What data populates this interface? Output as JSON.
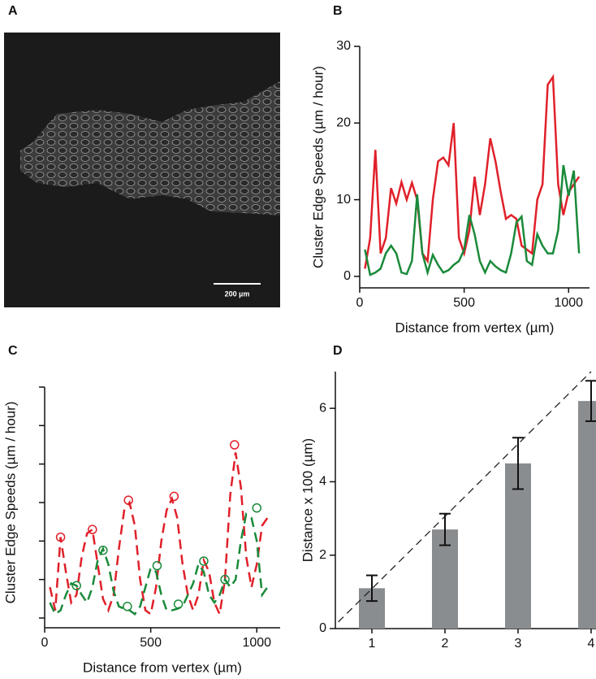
{
  "chart_data": [
    {
      "type": "image",
      "panel": "A",
      "scale_bar_label": "200 µm"
    },
    {
      "type": "line",
      "panel": "B",
      "xlabel": "Distance from vertex (µm)",
      "ylabel": "Cluster Edge Speeds (µm / hour)",
      "x": [
        25,
        50,
        75,
        100,
        125,
        150,
        175,
        200,
        225,
        250,
        275,
        300,
        325,
        350,
        375,
        400,
        425,
        450,
        475,
        500,
        525,
        550,
        575,
        600,
        625,
        650,
        675,
        700,
        725,
        750,
        775,
        800,
        825,
        850,
        875,
        900,
        925,
        950,
        975,
        1000,
        1025,
        1050
      ],
      "series": [
        {
          "name": "red",
          "color": "#e0202a",
          "values": [
            1,
            5,
            16.5,
            3,
            5,
            11.5,
            9.5,
            12.3,
            10,
            12.2,
            10,
            3,
            2,
            10,
            15,
            15.5,
            14.5,
            20,
            5,
            3,
            6,
            13,
            8,
            12,
            18,
            15,
            11,
            7.5,
            8,
            7.5,
            4,
            3.5,
            3,
            10,
            12,
            25,
            26,
            12,
            8,
            11,
            12,
            13
          ]
        },
        {
          "name": "green",
          "color": "#1a8a3a",
          "values": [
            3.5,
            0.2,
            0.5,
            1,
            3,
            4,
            3,
            0.5,
            0.3,
            2,
            10.7,
            3,
            0.5,
            2.8,
            1.5,
            0.5,
            0.8,
            1.5,
            2,
            3.5,
            8,
            5.5,
            2,
            0.5,
            2,
            1.3,
            0.8,
            0.5,
            3,
            7,
            7.8,
            2,
            1.5,
            5.5,
            4,
            3,
            3,
            6,
            14.5,
            10.5,
            13.8,
            3
          ]
        }
      ],
      "xlim": [
        0,
        1100
      ],
      "xticks": [
        0,
        500,
        1000
      ],
      "ylim": [
        -1.5,
        30
      ],
      "yticks": [
        0,
        10,
        20,
        30
      ],
      "line_style": "solid",
      "ytick_labels": true
    },
    {
      "type": "line",
      "panel": "C",
      "xlabel": "Distance from vertex (µm)",
      "ylabel": "Cluster Edge Speeds (µm / hour)",
      "x": [
        25,
        50,
        75,
        100,
        125,
        150,
        175,
        200,
        225,
        250,
        275,
        300,
        325,
        350,
        375,
        400,
        425,
        450,
        475,
        500,
        525,
        550,
        575,
        600,
        625,
        650,
        675,
        700,
        725,
        750,
        775,
        800,
        825,
        850,
        875,
        900,
        925,
        950,
        975,
        1000,
        1025,
        1050
      ],
      "series": [
        {
          "name": "red",
          "color": "#e0202a",
          "values": [
            4,
            1,
            10.5,
            6,
            2,
            3,
            8,
            11,
            11.5,
            7,
            2.5,
            1,
            3,
            9,
            14,
            15,
            12,
            5,
            1,
            0.5,
            4,
            10,
            14,
            15.5,
            13,
            7,
            3,
            1,
            3,
            7.5,
            6,
            2,
            0.5,
            5,
            16,
            21.5,
            17,
            8,
            4,
            7,
            12,
            13
          ],
          "markers": {
            "x": [
              75,
              225,
              395,
              610,
              895
            ],
            "values": [
              10.5,
              11.5,
              15.3,
              15.8,
              22.5
            ]
          }
        },
        {
          "name": "green",
          "color": "#1a8a3a",
          "values": [
            2,
            0.5,
            1,
            3,
            4.5,
            4.2,
            3,
            2,
            4,
            7.5,
            9,
            7,
            3.5,
            1.5,
            1.2,
            1,
            0.5,
            1.5,
            4,
            6.5,
            6,
            3,
            1,
            1,
            1.2,
            1.5,
            3,
            4.5,
            7,
            6,
            3,
            2,
            3,
            5,
            4,
            5,
            10,
            13.5,
            13,
            10,
            3,
            4
          ],
          "markers": {
            "x": [
              150,
              275,
              390,
              530,
              630,
              750,
              850,
              1000
            ],
            "values": [
              4.2,
              8.8,
              1.5,
              6.8,
              1.8,
              7.4,
              5,
              14.3
            ]
          }
        }
      ],
      "xlim": [
        0,
        1110
      ],
      "xticks": [
        0,
        500,
        1000
      ],
      "ylim": [
        0,
        30
      ],
      "yticks": [
        0,
        5,
        10,
        15,
        20,
        25,
        30
      ],
      "line_style": "dashed",
      "ytick_labels": false
    },
    {
      "type": "bar",
      "panel": "D",
      "ylabel": "Distance x 100 (µm)",
      "categories": [
        "1",
        "2",
        "3",
        "4"
      ],
      "values": [
        1.1,
        2.7,
        4.5,
        6.2
      ],
      "errors": [
        0.35,
        0.43,
        0.7,
        0.55
      ],
      "color": "#8a8d90",
      "ylim": [
        0,
        7
      ],
      "yticks": [
        0,
        2,
        4,
        6
      ],
      "trend": {
        "x": [
          0.54,
          4
        ],
        "y": [
          0.18,
          7
        ]
      }
    }
  ]
}
